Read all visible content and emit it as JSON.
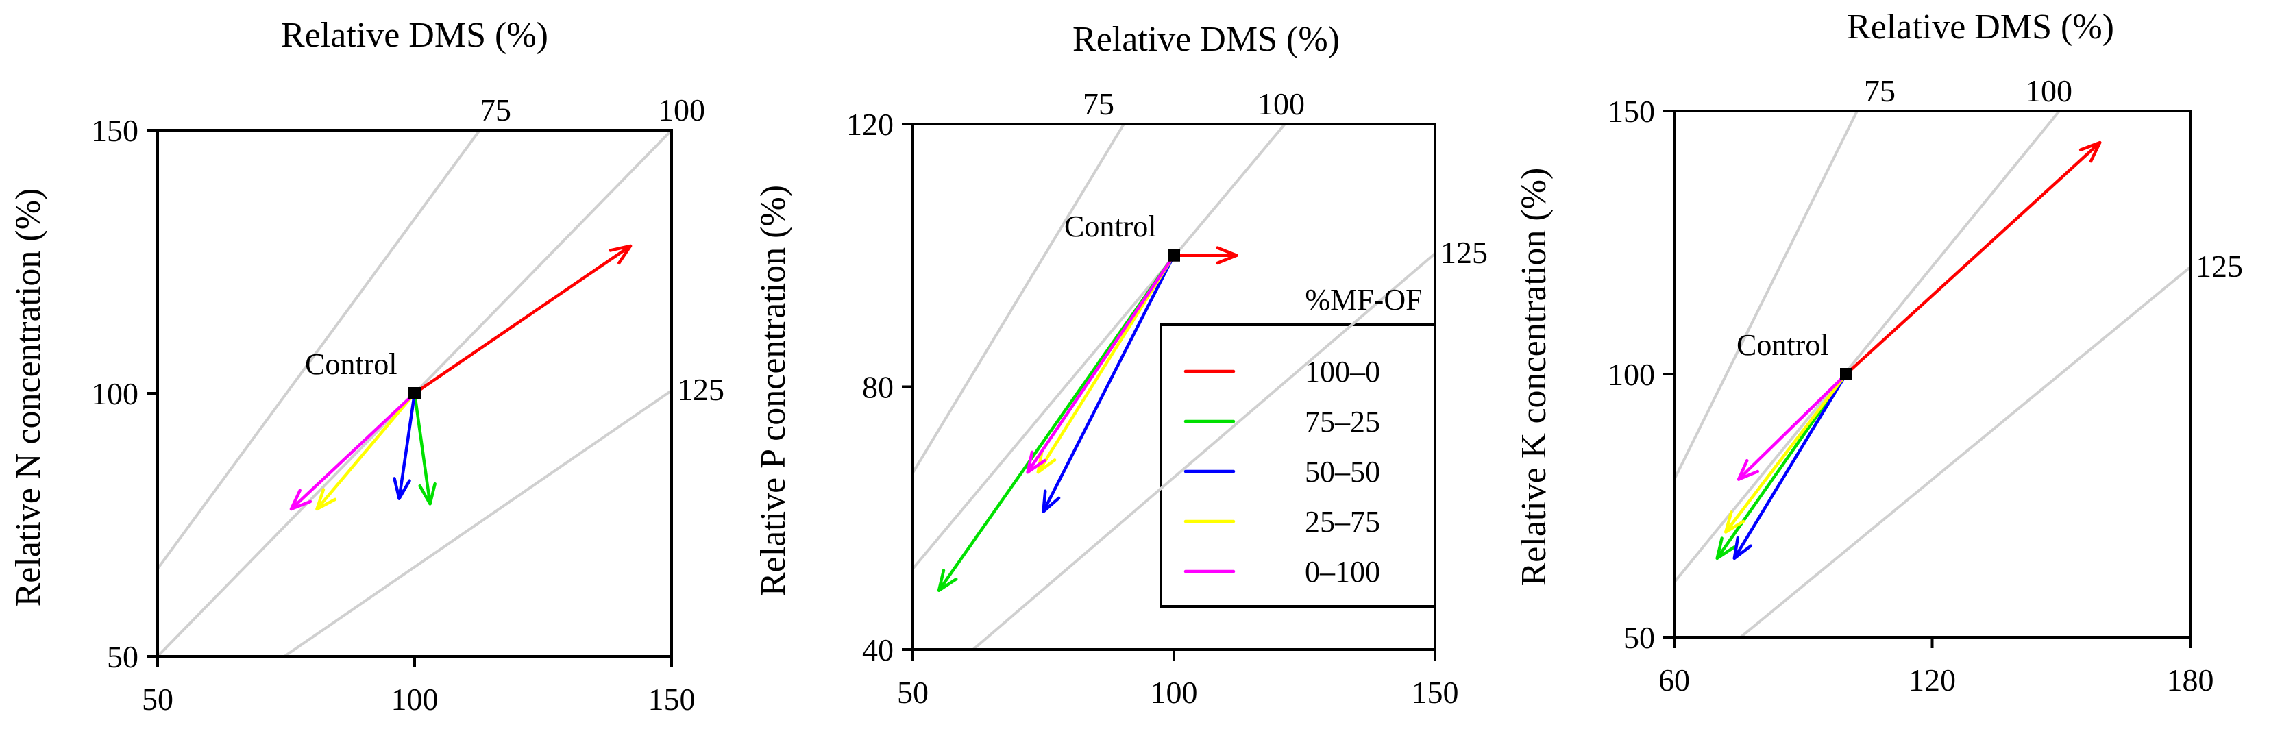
{
  "chart_data": [
    {
      "type": "vector",
      "title": "Relative DMS (%)",
      "xlabel": "",
      "ylabel": "Relative N concentration (%)",
      "xlim": [
        50,
        150
      ],
      "ylim": [
        50,
        150
      ],
      "xticks": [
        "50",
        "100",
        "150"
      ],
      "yticks": [
        "50",
        "100",
        "150"
      ],
      "isolines": [
        {
          "label": "75",
          "value": 75
        },
        {
          "label": "100",
          "value": 100
        },
        {
          "label": "125",
          "value": 125
        }
      ],
      "control": {
        "label": "Control",
        "x": 100,
        "y": 100
      },
      "vectors": [
        {
          "name": "100–0",
          "x": 142,
          "y": 128
        },
        {
          "name": "75–25",
          "x": 103,
          "y": 79
        },
        {
          "name": "50–50",
          "x": 97,
          "y": 80
        },
        {
          "name": "25–75",
          "x": 81,
          "y": 78
        },
        {
          "name": "0–100",
          "x": 76,
          "y": 78
        }
      ]
    },
    {
      "type": "vector",
      "title": "Relative DMS (%)",
      "xlabel": "",
      "ylabel": "Relative P concentration (%)",
      "xlim": [
        50,
        150
      ],
      "ylim": [
        40,
        120
      ],
      "xticks": [
        "50",
        "100",
        "150"
      ],
      "yticks": [
        "40",
        "80",
        "120"
      ],
      "isolines": [
        {
          "label": "75",
          "value": 75
        },
        {
          "label": "100",
          "value": 100
        },
        {
          "label": "125",
          "value": 125
        }
      ],
      "control": {
        "label": "Control",
        "x": 100,
        "y": 100
      },
      "vectors": [
        {
          "name": "100–0",
          "x": 112,
          "y": 100
        },
        {
          "name": "75–25",
          "x": 55,
          "y": 49
        },
        {
          "name": "50–50",
          "x": 75,
          "y": 61
        },
        {
          "name": "25–75",
          "x": 74,
          "y": 67
        },
        {
          "name": "0–100",
          "x": 72,
          "y": 67
        }
      ]
    },
    {
      "type": "vector",
      "title": "Relative DMS (%)",
      "xlabel": "",
      "ylabel": "Relative K concentration (%)",
      "xlim": [
        60,
        180
      ],
      "ylim": [
        50,
        150
      ],
      "xticks": [
        "60",
        "120",
        "180"
      ],
      "yticks": [
        "50",
        "100",
        "150"
      ],
      "isolines": [
        {
          "label": "75",
          "value": 75
        },
        {
          "label": "100",
          "value": 100
        },
        {
          "label": "125",
          "value": 125
        }
      ],
      "control": {
        "label": "Control",
        "x": 100,
        "y": 100
      },
      "vectors": [
        {
          "name": "100–0",
          "x": 159,
          "y": 144
        },
        {
          "name": "75–25",
          "x": 70,
          "y": 65
        },
        {
          "name": "50–50",
          "x": 74,
          "y": 65
        },
        {
          "name": "25–75",
          "x": 72,
          "y": 70
        },
        {
          "name": "0–100",
          "x": 75,
          "y": 80
        }
      ]
    }
  ],
  "legend": {
    "title": "%MF-OF",
    "entries": [
      {
        "label": "100–0",
        "color": "#ff0000"
      },
      {
        "label": "75–25",
        "color": "#00e000"
      },
      {
        "label": "50–50",
        "color": "#0000ff"
      },
      {
        "label": "25–75",
        "color": "#ffff00"
      },
      {
        "label": "0–100",
        "color": "#ff00ff"
      }
    ]
  }
}
